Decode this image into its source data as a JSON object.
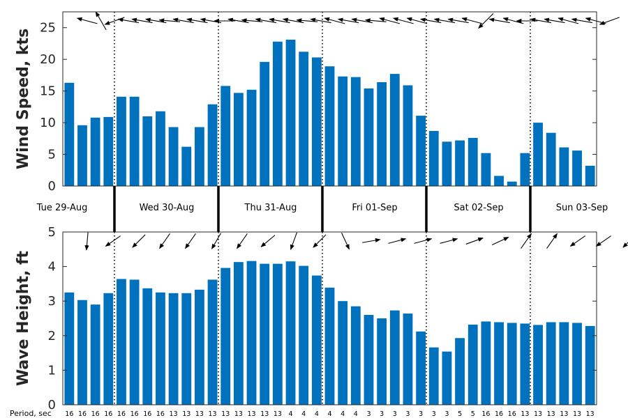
{
  "chart_data": [
    {
      "type": "bar",
      "ylabel": "Wind Speed, kts",
      "ylim": [
        0,
        27.5
      ],
      "yticks": [
        0,
        5,
        10,
        15,
        20,
        25
      ],
      "color": "#0072BD",
      "values": [
        16.3,
        9.6,
        10.8,
        10.9,
        14.1,
        14.1,
        11.0,
        11.8,
        9.3,
        6.2,
        9.3,
        12.9,
        15.8,
        14.7,
        15.2,
        19.6,
        22.8,
        23.1,
        21.2,
        20.3,
        18.9,
        17.3,
        17.2,
        15.4,
        16.4,
        17.7,
        15.9,
        11.1,
        8.7,
        7.0,
        7.2,
        7.6,
        5.2,
        1.6,
        0.7,
        5.2,
        10.0,
        8.4,
        6.1,
        5.6,
        3.2
      ],
      "direction_arrows_deg": [
        70,
        120,
        80,
        80,
        80,
        80,
        80,
        80,
        80,
        80,
        85,
        85,
        80,
        80,
        80,
        80,
        80,
        80,
        80,
        80,
        80,
        80,
        70,
        80,
        75,
        70,
        80,
        80,
        80,
        80,
        80,
        80,
        80,
        140,
        70,
        80,
        80,
        75,
        100
      ]
    },
    {
      "type": "bar",
      "ylabel": "Wave Height, ft",
      "ylim": [
        0,
        5
      ],
      "yticks": [
        0,
        1,
        2,
        3,
        4,
        5
      ],
      "color": "#0072BD",
      "values": [
        3.25,
        3.03,
        2.9,
        3.23,
        3.64,
        3.62,
        3.37,
        3.25,
        3.23,
        3.23,
        3.33,
        3.62,
        3.96,
        4.13,
        4.16,
        4.08,
        4.08,
        4.15,
        4.02,
        3.74,
        3.39,
        3.0,
        2.85,
        2.6,
        2.5,
        2.73,
        2.64,
        2.12,
        1.66,
        1.54,
        1.93,
        2.32,
        2.41,
        2.39,
        2.37,
        2.35,
        2.31,
        2.39,
        2.39,
        2.37,
        2.28
      ],
      "direction_arrows_deg": [
        5,
        45,
        45,
        45,
        45,
        45,
        45,
        40,
        45,
        330,
        290,
        290,
        290,
        290,
        295,
        300,
        300,
        35,
        45,
        45,
        45,
        45,
        45,
        45
      ],
      "arrow_row_2_deg": [
        30,
        45,
        45,
        45,
        45,
        45
      ],
      "periods_sec": [
        "16",
        "16",
        "16",
        "16",
        "16",
        "16",
        "16",
        "16",
        "13",
        "13",
        "13",
        "13",
        "13",
        "13",
        "13",
        "13",
        "13",
        "4",
        "4",
        "4",
        "4",
        "4",
        "4",
        "3",
        "3",
        "3",
        "3",
        "3",
        "3",
        "3",
        "5",
        "5",
        "16",
        "16",
        "16",
        "13",
        "13",
        "13",
        "13",
        "13",
        "13"
      ],
      "period_axis_label": "Period, sec"
    }
  ],
  "days": [
    "Tue 29-Aug",
    "Wed 30-Aug",
    "Thu 31-Aug",
    "Fri 01-Sep",
    "Sat 02-Sep",
    "Sun 03-Sep"
  ]
}
